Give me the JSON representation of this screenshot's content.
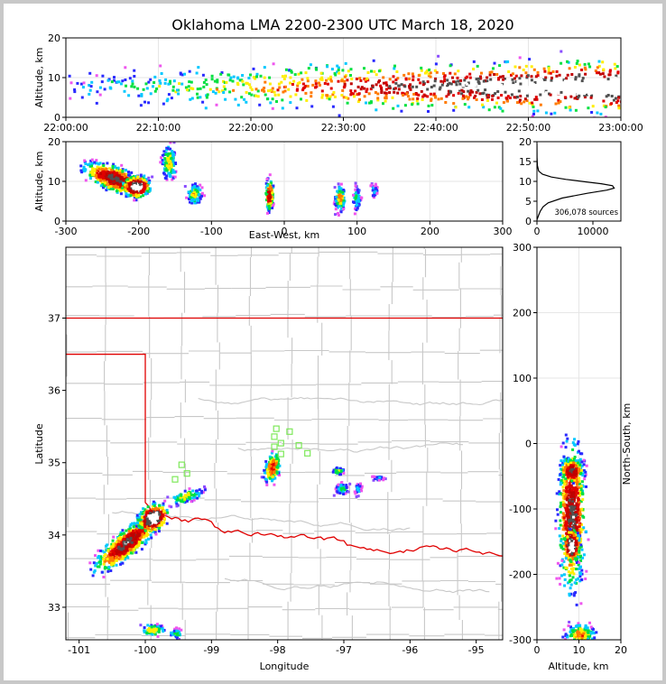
{
  "title": "Oklahoma LMA 2200-2300 UTC March 18, 2020",
  "colors": {
    "frame_bg": "#c8c8c8",
    "state_border": "#e00000",
    "county_lines": "#c8c8c8",
    "stations": "#7ee85a",
    "density_scale": [
      "#c5c5ff",
      "#8a4dff",
      "#ee55ee",
      "#2a2aff",
      "#00c8ff",
      "#00e040",
      "#ffee00",
      "#ff7a00",
      "#e00000",
      "#c00000",
      "#505050",
      "#ffffff"
    ]
  },
  "chart_data": [
    {
      "id": "time_height",
      "type": "heatmap",
      "x": {
        "ticks": [
          "22:00:00",
          "22:10:00",
          "22:20:00",
          "22:30:00",
          "22:40:00",
          "22:50:00",
          "23:00:00"
        ],
        "range": [
          "22:00:00",
          "23:00:00"
        ]
      },
      "y": {
        "label": "Altitude, km",
        "range": [
          0,
          20
        ],
        "ticks": [
          0,
          10,
          20
        ]
      },
      "grid": true
    },
    {
      "id": "ew_height",
      "type": "heatmap",
      "x": {
        "label": "East-West, km",
        "range": [
          -300,
          300
        ],
        "ticks": [
          -300,
          -200,
          -100,
          0,
          100,
          200,
          300
        ]
      },
      "y": {
        "label": "Altitude, km",
        "range": [
          0,
          20
        ],
        "ticks": [
          0,
          10,
          20
        ]
      },
      "grid": true
    },
    {
      "id": "altitude_histogram",
      "type": "line",
      "x": {
        "range": [
          0,
          15000
        ],
        "ticks": [
          0,
          10000
        ]
      },
      "y": {
        "range": [
          0,
          20
        ],
        "ticks": [
          0,
          5,
          10,
          15,
          20
        ]
      },
      "annotation": "306,078 sources",
      "points": [
        [
          0,
          0.3
        ],
        [
          300,
          1.5
        ],
        [
          600,
          2.5
        ],
        [
          1100,
          3.6
        ],
        [
          2000,
          4.6
        ],
        [
          4500,
          5.8
        ],
        [
          9000,
          7.0
        ],
        [
          12500,
          7.8
        ],
        [
          13800,
          8.3
        ],
        [
          13500,
          8.9
        ],
        [
          11500,
          9.4
        ],
        [
          8500,
          9.9
        ],
        [
          5200,
          10.5
        ],
        [
          2600,
          11.1
        ],
        [
          1000,
          11.8
        ],
        [
          300,
          12.6
        ],
        [
          80,
          14.0
        ],
        [
          20,
          16.0
        ],
        [
          0,
          19.5
        ]
      ]
    },
    {
      "id": "plan_view",
      "type": "heatmap",
      "x": {
        "label": "Longitude",
        "range": [
          -101.2,
          -94.6
        ],
        "ticks": [
          -101,
          -100,
          -99,
          -98,
          -97,
          -96,
          -95
        ]
      },
      "y": {
        "label": "Latitude",
        "range": [
          32.55,
          37.98
        ],
        "ticks": [
          33,
          34,
          35,
          36,
          37
        ]
      }
    },
    {
      "id": "ns_height",
      "type": "heatmap",
      "x": {
        "label": "Altitude, km",
        "range": [
          0,
          20
        ],
        "ticks": [
          0,
          10,
          20
        ]
      },
      "y": {
        "label": "North-South, km",
        "range": [
          -300,
          300
        ],
        "ticks": [
          -300,
          -200,
          -100,
          0,
          100,
          200,
          300
        ]
      },
      "grid": true
    }
  ]
}
